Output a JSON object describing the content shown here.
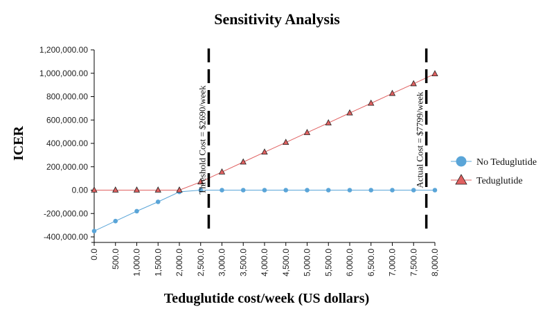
{
  "chart_data": {
    "type": "line",
    "title": "Sensitivity Analysis",
    "xlabel": "Teduglutide cost/week (US dollars)",
    "ylabel": "ICER",
    "xlim": [
      0,
      8000
    ],
    "ylim": [
      -400000,
      1200000
    ],
    "x_ticks": [
      "0.0",
      "500.0",
      "1,000.0",
      "1,500.0",
      "2,000.0",
      "2,500.0",
      "3,000.0",
      "3,500.0",
      "4,000.0",
      "4,500.0",
      "5,000.0",
      "5,500.0",
      "6,000.0",
      "6,500.0",
      "7,000.0",
      "7,500.0",
      "8,000.0"
    ],
    "y_ticks": [
      "1,200,000.00",
      "1,000,000.00",
      "800,000.00",
      "600,000.00",
      "400,000.00",
      "200,000.00",
      "0.00",
      "-200,000.00",
      "-400,000.00"
    ],
    "x": [
      0,
      500,
      1000,
      1500,
      2000,
      2500,
      3000,
      3500,
      4000,
      4500,
      5000,
      5500,
      6000,
      6500,
      7000,
      7500,
      8000
    ],
    "series": [
      {
        "name": "No Teduglutide",
        "color": "#5aa5d8",
        "marker": "circle",
        "values": [
          -350000,
          -265000,
          -180000,
          -100000,
          -15000,
          0,
          0,
          0,
          0,
          0,
          0,
          0,
          0,
          0,
          0,
          0,
          0
        ]
      },
      {
        "name": "Teduglutide",
        "color": "#e06060",
        "marker": "triangle",
        "values": [
          0,
          0,
          0,
          0,
          0,
          70000,
          155000,
          240000,
          325000,
          408000,
          492000,
          575000,
          660000,
          743000,
          827000,
          910000,
          995000
        ]
      }
    ],
    "reference_lines": [
      {
        "x": 2690,
        "label": "Threshold Cost = $2690/week"
      },
      {
        "x": 7799,
        "label": "Actual Cost = $7799/week"
      }
    ],
    "grid": false,
    "legend_position": "right"
  }
}
